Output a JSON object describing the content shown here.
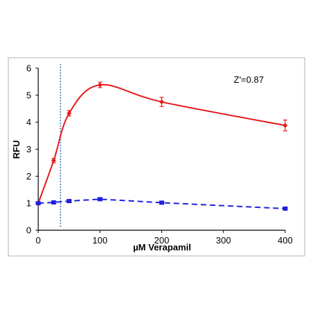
{
  "chart_data": {
    "type": "line",
    "xlabel": "µM Verapamil",
    "ylabel": "RFU",
    "annotation": "Z'=0.87",
    "xlim": [
      0,
      400
    ],
    "ylim": [
      0,
      6
    ],
    "xticks": [
      0,
      100,
      200,
      300,
      400
    ],
    "yticks": [
      0,
      1,
      2,
      3,
      4,
      5,
      6
    ],
    "grid": false,
    "reference_line_x": 36,
    "series": [
      {
        "color": "#e41a1c",
        "line_style": "solid-smooth",
        "marker": "diamond",
        "x": [
          0,
          25,
          50,
          100,
          200,
          400
        ],
        "y": [
          1.0,
          2.58,
          4.33,
          5.38,
          4.75,
          3.88
        ],
        "error": [
          0.04,
          0.08,
          0.1,
          0.1,
          0.17,
          0.2
        ]
      },
      {
        "color": "#1f1fe0",
        "line_style": "dashed",
        "marker": "square",
        "x": [
          0,
          25,
          50,
          100,
          200,
          400
        ],
        "y": [
          1.0,
          1.03,
          1.08,
          1.15,
          1.02,
          0.8
        ],
        "error": [
          0.03,
          0.03,
          0.03,
          0.04,
          0.03,
          0.03
        ]
      }
    ],
    "colors": {
      "axis": "#000000",
      "reference_line": "#1f5fb0"
    }
  }
}
